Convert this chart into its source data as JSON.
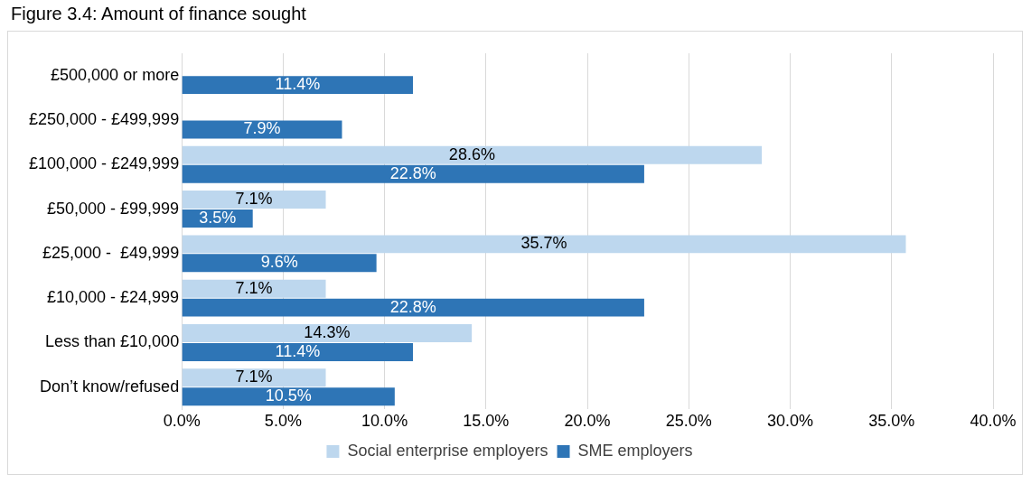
{
  "chart_data": {
    "type": "bar",
    "orientation": "horizontal",
    "title": "Figure 3.4: Amount of finance sought",
    "categories": [
      "£500,000 or more",
      "£250,000 - £499,999",
      "£100,000 - £249,999",
      "£50,000 - £99,999",
      "£25,000 -  £49,999",
      "£10,000 - £24,999",
      "Less than £10,000",
      "Don’t know/refused"
    ],
    "series": [
      {
        "name": "Social enterprise employers",
        "color": "#bdd7ee",
        "values": [
          null,
          null,
          28.6,
          7.1,
          35.7,
          7.1,
          14.3,
          7.1
        ],
        "value_labels": [
          null,
          null,
          "28.6%",
          "7.1%",
          "35.7%",
          "7.1%",
          "14.3%",
          "7.1%"
        ]
      },
      {
        "name": "SME employers",
        "color": "#2e75b6",
        "values": [
          11.4,
          7.9,
          22.8,
          3.5,
          9.6,
          22.8,
          11.4,
          10.5
        ],
        "value_labels": [
          "11.4%",
          "7.9%",
          "22.8%",
          "3.5%",
          "9.6%",
          "22.8%",
          "11.4%",
          "10.5%"
        ]
      }
    ],
    "xlim": [
      0,
      40
    ],
    "xticks": [
      {
        "value": 0,
        "label": "0.0%"
      },
      {
        "value": 5,
        "label": "5.0%"
      },
      {
        "value": 10,
        "label": "10.0%"
      },
      {
        "value": 15,
        "label": "15.0%"
      },
      {
        "value": 20,
        "label": "20.0%"
      },
      {
        "value": 25,
        "label": "25.0%"
      },
      {
        "value": 30,
        "label": "30.0%"
      },
      {
        "value": 35,
        "label": "35.0%"
      },
      {
        "value": 40,
        "label": "40.0%"
      }
    ],
    "grid": "x",
    "legend": "bottom"
  }
}
